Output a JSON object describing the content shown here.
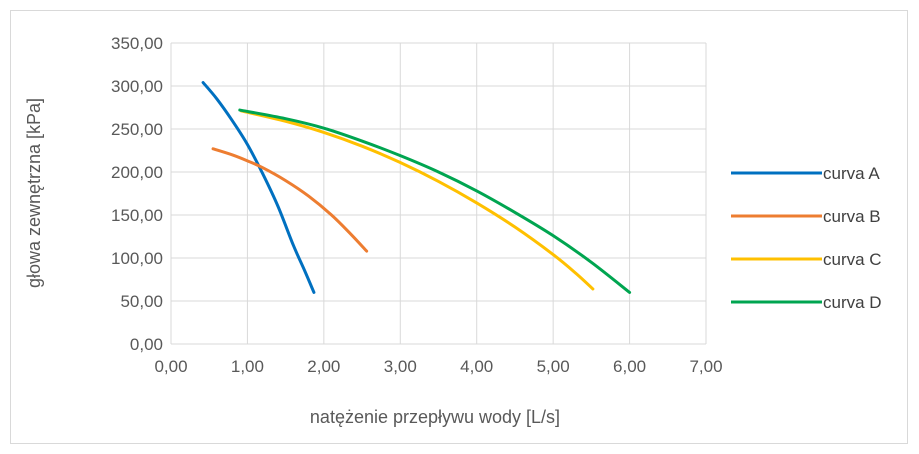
{
  "chart_data": {
    "type": "line",
    "title": "",
    "xlabel": "natężenie przepływu wody [L/s]",
    "ylabel": "głowa zewnętrzna [kPa]",
    "xlim": [
      0,
      7
    ],
    "ylim": [
      0,
      350
    ],
    "x_ticks": [
      "0,00",
      "1,00",
      "2,00",
      "3,00",
      "4,00",
      "5,00",
      "6,00",
      "7,00"
    ],
    "y_ticks": [
      "0,00",
      "50,00",
      "100,00",
      "150,00",
      "200,00",
      "250,00",
      "300,00",
      "350,00"
    ],
    "grid": true,
    "legend_position": "right",
    "series": [
      {
        "name": "curva A",
        "color": "#0070C0",
        "x": [
          0.42,
          0.6,
          0.8,
          1.0,
          1.2,
          1.4,
          1.6,
          1.75,
          1.87
        ],
        "y": [
          304,
          285,
          260,
          232,
          198,
          160,
          115,
          85,
          60
        ]
      },
      {
        "name": "curva B",
        "color": "#ED7D31",
        "x": [
          0.55,
          0.8,
          1.0,
          1.2,
          1.5,
          1.8,
          2.1,
          2.35,
          2.56
        ],
        "y": [
          227,
          220,
          213,
          205,
          190,
          172,
          150,
          128,
          108
        ]
      },
      {
        "name": "curva C",
        "color": "#FFC000",
        "x": [
          0.92,
          1.5,
          2.0,
          2.5,
          3.0,
          3.5,
          4.0,
          4.5,
          5.0,
          5.3,
          5.52
        ],
        "y": [
          271,
          259,
          246,
          230,
          211,
          189,
          164,
          136,
          104,
          82,
          64
        ]
      },
      {
        "name": "curva D",
        "color": "#00A550",
        "x": [
          0.9,
          1.5,
          2.0,
          2.5,
          3.0,
          3.5,
          4.0,
          4.5,
          5.0,
          5.5,
          6.0
        ],
        "y": [
          272,
          262,
          251,
          236,
          219,
          200,
          178,
          153,
          126,
          95,
          60
        ]
      }
    ]
  }
}
